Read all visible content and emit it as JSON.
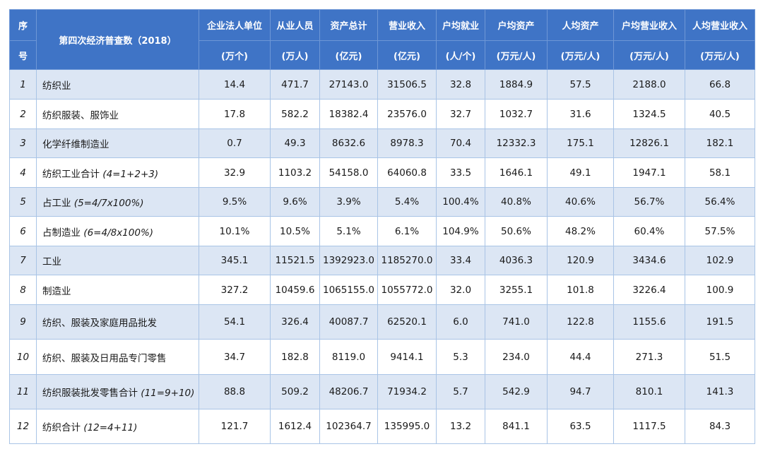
{
  "header": {
    "seq_top": "序",
    "seq_bottom": "号",
    "title": "第四次经济普查数（2018）",
    "columns": [
      {
        "label": "企业法人单位",
        "unit": "(万个)"
      },
      {
        "label": "从业人员",
        "unit": "(万人)"
      },
      {
        "label": "资产总计",
        "unit": "(亿元)"
      },
      {
        "label": "营业收入",
        "unit": "(亿元)"
      },
      {
        "label": "户均就业",
        "unit": "(人/个)"
      },
      {
        "label": "户均资产",
        "unit": "(万元/人)"
      },
      {
        "label": "人均资产",
        "unit": "(万元/人)"
      },
      {
        "label": "户均营业收入",
        "unit": "(万元/人)"
      },
      {
        "label": "人均营业收入",
        "unit": "(万元/人)"
      }
    ]
  },
  "rows": [
    {
      "idx": "1",
      "name": "纺织业",
      "note": "",
      "values": [
        "14.4",
        "471.7",
        "27143.0",
        "31506.5",
        "32.8",
        "1884.9",
        "57.5",
        "2188.0",
        "66.8"
      ]
    },
    {
      "idx": "2",
      "name": "纺织服装、服饰业",
      "note": "",
      "values": [
        "17.8",
        "582.2",
        "18382.4",
        "23576.0",
        "32.7",
        "1032.7",
        "31.6",
        "1324.5",
        "40.5"
      ]
    },
    {
      "idx": "3",
      "name": "化学纤维制造业",
      "note": "",
      "values": [
        "0.7",
        "49.3",
        "8632.6",
        "8978.3",
        "70.4",
        "12332.3",
        "175.1",
        "12826.1",
        "182.1"
      ]
    },
    {
      "idx": "4",
      "name": "纺织工业合计",
      "note": "(4=1+2+3)",
      "values": [
        "32.9",
        "1103.2",
        "54158.0",
        "64060.8",
        "33.5",
        "1646.1",
        "49.1",
        "1947.1",
        "58.1"
      ]
    },
    {
      "idx": "5",
      "name": "占工业",
      "note": "(5=4/7x100%)",
      "values": [
        "9.5%",
        "9.6%",
        "3.9%",
        "5.4%",
        "100.4%",
        "40.8%",
        "40.6%",
        "56.7%",
        "56.4%"
      ]
    },
    {
      "idx": "6",
      "name": "占制造业",
      "note": "(6=4/8x100%)",
      "values": [
        "10.1%",
        "10.5%",
        "5.1%",
        "6.1%",
        "104.9%",
        "50.6%",
        "48.2%",
        "60.4%",
        "57.5%"
      ]
    },
    {
      "idx": "7",
      "name": "工业",
      "note": "",
      "values": [
        "345.1",
        "11521.5",
        "1392923.0",
        "1185270.0",
        "33.4",
        "4036.3",
        "120.9",
        "3434.6",
        "102.9"
      ]
    },
    {
      "idx": "8",
      "name": "制造业",
      "note": "",
      "values": [
        "327.2",
        "10459.6",
        "1065155.0",
        "1055772.0",
        "32.0",
        "3255.1",
        "101.8",
        "3226.4",
        "100.9"
      ]
    },
    {
      "idx": "9",
      "name": "纺织、服装及家庭用品批发",
      "note": "",
      "values": [
        "54.1",
        "326.4",
        "40087.7",
        "62520.1",
        "6.0",
        "741.0",
        "122.8",
        "1155.6",
        "191.5"
      ]
    },
    {
      "idx": "10",
      "name": "纺织、服装及日用品专门零售",
      "note": "",
      "values": [
        "34.7",
        "182.8",
        "8119.0",
        "9414.1",
        "5.3",
        "234.0",
        "44.4",
        "271.3",
        "51.5"
      ]
    },
    {
      "idx": "11",
      "name": "纺织服装批发零售合计",
      "note": "(11=9+10)",
      "values": [
        "88.8",
        "509.2",
        "48206.7",
        "71934.2",
        "5.7",
        "542.9",
        "94.7",
        "810.1",
        "141.3"
      ]
    },
    {
      "idx": "12",
      "name": "纺织合计",
      "note": "(12=4+11)",
      "values": [
        "121.7",
        "1612.4",
        "102364.7",
        "135995.0",
        "13.2",
        "841.1",
        "63.5",
        "1117.5",
        "84.3"
      ]
    }
  ]
}
